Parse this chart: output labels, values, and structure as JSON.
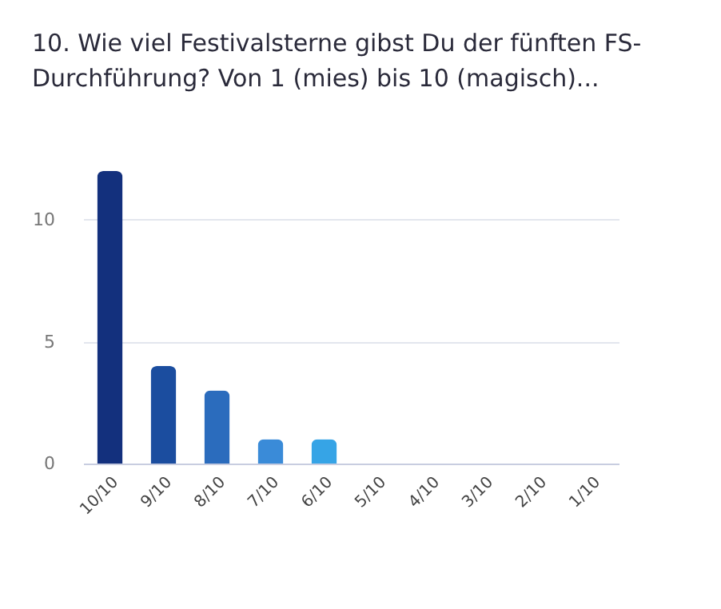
{
  "chart_data": {
    "type": "bar",
    "title": "10. Wie viel Festivalsterne gibst Du der fünften FS-Durchführung? Von 1 (mies) bis 10 (magisch)...",
    "categories": [
      "10/10",
      "9/10",
      "8/10",
      "7/10",
      "6/10",
      "5/10",
      "4/10",
      "3/10",
      "2/10",
      "1/10"
    ],
    "values": [
      12,
      4,
      3,
      1,
      1,
      0,
      0,
      0,
      0,
      0
    ],
    "colors": [
      "#13307d",
      "#1b4d9f",
      "#2b6cbd",
      "#3a8bd8",
      "#36a4e6",
      "#36a4e6",
      "#36a4e6",
      "#36a4e6",
      "#36a4e6",
      "#36a4e6"
    ],
    "ylim": [
      0,
      12
    ],
    "yticks": [
      0,
      5,
      10
    ],
    "grid": "y",
    "legend": false
  }
}
